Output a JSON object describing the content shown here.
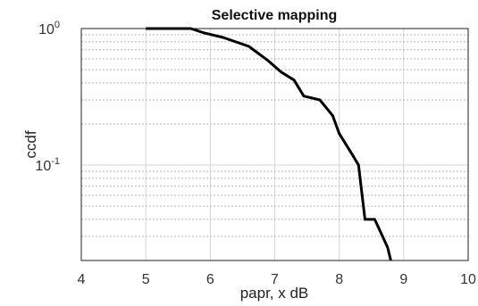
{
  "chart_data": {
    "type": "line",
    "title": "Selective mapping",
    "xlabel": "papr, x dB",
    "ylabel": "ccdf",
    "xlim": [
      4,
      10
    ],
    "ylim": [
      0.02,
      1
    ],
    "yscale": "log",
    "grid": true,
    "minor_grid": true,
    "x_ticks": [
      4,
      5,
      6,
      7,
      8,
      9,
      10
    ],
    "x_tick_labels": [
      "4",
      "5",
      "6",
      "7",
      "8",
      "9",
      "10"
    ],
    "y_ticks": [
      {
        "value": 1,
        "base": "10",
        "exp": "0"
      },
      {
        "value": 0.1,
        "base": "10",
        "exp": "-1"
      }
    ],
    "series": [
      {
        "color": "#000000",
        "x": [
          5.0,
          5.7,
          5.9,
          6.2,
          6.6,
          6.9,
          7.1,
          7.3,
          7.45,
          7.7,
          7.9,
          8.0,
          8.2,
          8.3,
          8.4,
          8.55,
          8.75,
          8.8
        ],
        "y": [
          1.0,
          1.0,
          0.93,
          0.86,
          0.74,
          0.58,
          0.48,
          0.42,
          0.32,
          0.3,
          0.23,
          0.17,
          0.12,
          0.1,
          0.04,
          0.04,
          0.025,
          0.02
        ]
      }
    ]
  }
}
